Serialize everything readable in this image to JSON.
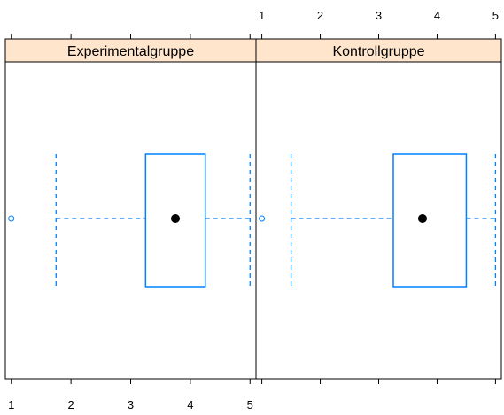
{
  "chart_data": {
    "type": "boxplot",
    "layout": "two panels side by side, shared x axis",
    "xlim": [
      0.9,
      5.1
    ],
    "x_ticks": [
      "1",
      "2",
      "3",
      "4",
      "5"
    ],
    "strip_color": "#ffe5cc",
    "box_color": "#0080ff",
    "median_color": "#000000",
    "panels": [
      {
        "strip_label": "Experimentalgruppe",
        "outliers": [
          1.0
        ],
        "whisker_low": 1.75,
        "q1": 3.25,
        "median": 3.75,
        "q3": 4.25,
        "whisker_high": 5.0
      },
      {
        "strip_label": "Kontrollgruppe",
        "outliers": [
          1.0
        ],
        "whisker_low": 1.5,
        "q1": 3.25,
        "median": 3.75,
        "q3": 4.5,
        "whisker_high": 5.0
      }
    ],
    "axes": {
      "top_tick_labels_on": "right panel",
      "bottom_tick_labels_on": "left panel"
    }
  }
}
